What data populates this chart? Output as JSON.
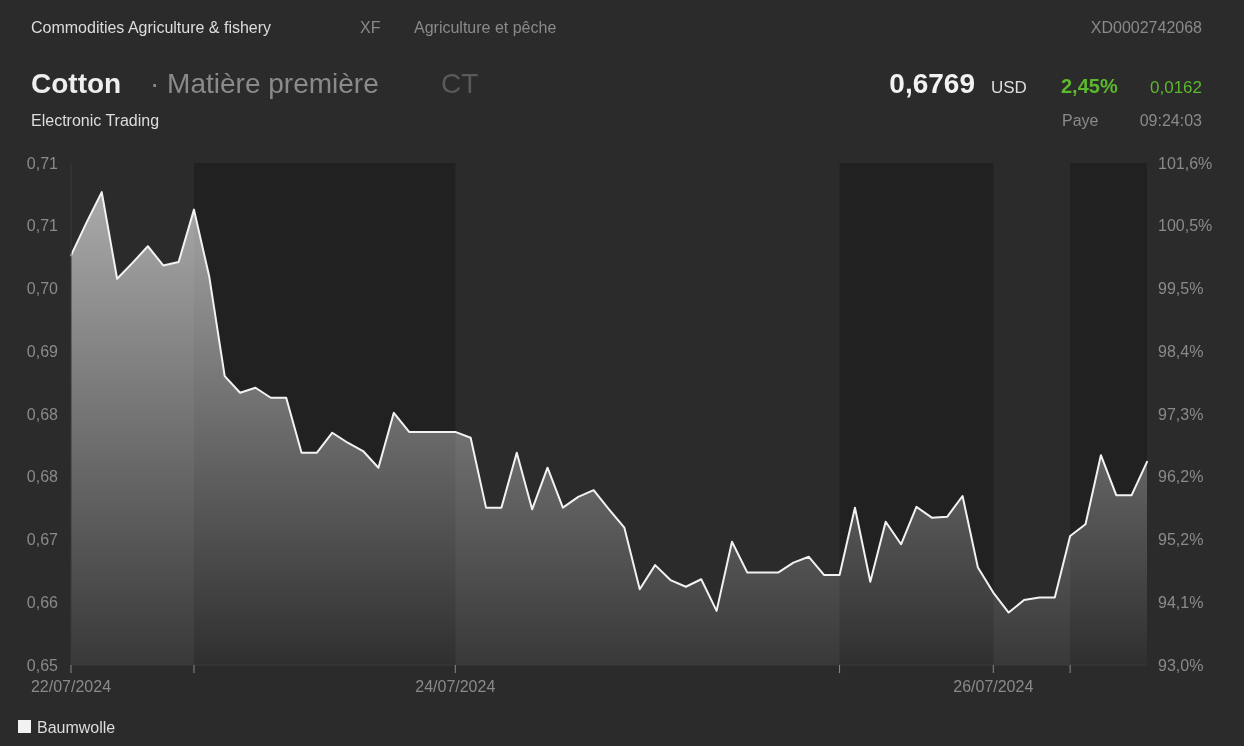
{
  "chart_data": {
    "type": "area",
    "title": "Cotton",
    "subtitle": "· Matière première",
    "annotations": [
      "Commodities Agriculture & fishery",
      "XF",
      "Agriculture et pêche",
      "XD0002742068",
      "CT",
      "0,6769",
      "USD",
      "2,45%",
      "0,0162",
      "Electronic Trading",
      "Paye",
      "09:24:03"
    ],
    "categories": [
      "22/07/2024",
      null,
      null,
      null,
      null,
      null,
      null,
      null,
      null,
      null,
      null,
      null,
      null,
      null,
      null,
      null,
      null,
      null,
      null,
      null,
      null,
      null,
      null,
      null,
      null,
      "24/07/2024",
      null,
      null,
      null,
      null,
      null,
      null,
      null,
      null,
      null,
      null,
      null,
      null,
      null,
      null,
      null,
      null,
      null,
      null,
      null,
      null,
      null,
      null,
      null,
      null,
      null,
      null,
      null,
      null,
      null,
      null,
      null,
      null,
      null,
      null,
      "26/07/2024",
      null,
      null,
      null,
      null,
      null,
      null,
      null,
      null,
      null,
      null
    ],
    "series": [
      {
        "name": "Baumwolle",
        "color": "#f2f2f2",
        "values": [
          0.7017,
          0.7056,
          0.7093,
          0.6989,
          0.7008,
          0.7028,
          0.7005,
          0.7009,
          0.7072,
          0.6991,
          0.6872,
          0.6852,
          0.6858,
          0.6846,
          0.6846,
          0.678,
          0.678,
          0.6804,
          0.6792,
          0.6782,
          0.6762,
          0.6828,
          0.6805,
          0.6805,
          0.6805,
          0.6805,
          0.6798,
          0.6714,
          0.6714,
          0.678,
          0.6712,
          0.6762,
          0.6714,
          0.6727,
          0.6735,
          0.6712,
          0.669,
          0.6616,
          0.6645,
          0.6627,
          0.6619,
          0.6628,
          0.659,
          0.6673,
          0.6636,
          0.6636,
          0.6636,
          0.6648,
          0.6655,
          0.6633,
          0.6633,
          0.6714,
          0.6625,
          0.6697,
          0.667,
          0.6715,
          0.6702,
          0.6703,
          0.6728,
          0.6642,
          0.6612,
          0.6588,
          0.6603,
          0.6606,
          0.6606,
          0.668,
          0.6694,
          0.6777,
          0.6729,
          0.6729,
          0.6769
        ]
      }
    ],
    "ylim": [
      0.6525,
      0.7128
    ],
    "yticks": [
      {
        "value": 0.6525,
        "label": "0,65"
      },
      {
        "value": 0.66,
        "label": "0,66"
      },
      {
        "value": 0.6676,
        "label": "0,67"
      },
      {
        "value": 0.6751,
        "label": "0,68"
      },
      {
        "value": 0.6826,
        "label": "0,68"
      },
      {
        "value": 0.6902,
        "label": "0,69"
      },
      {
        "value": 0.6977,
        "label": "0,70"
      },
      {
        "value": 0.7053,
        "label": "0,71"
      },
      {
        "value": 0.7128,
        "label": "0,71"
      }
    ],
    "y2lim": [
      93.0,
      101.6
    ],
    "y2ticks": [
      {
        "value": 93.0,
        "label": "93,0%"
      },
      {
        "value": 94.075,
        "label": "94,1%"
      },
      {
        "value": 95.15,
        "label": "95,2%"
      },
      {
        "value": 96.225,
        "label": "96,2%"
      },
      {
        "value": 97.3,
        "label": "97,3%"
      },
      {
        "value": 98.375,
        "label": "98,4%"
      },
      {
        "value": 99.45,
        "label": "99,5%"
      },
      {
        "value": 100.525,
        "label": "100,5%"
      },
      {
        "value": 101.6,
        "label": "101,6%"
      }
    ],
    "legend": "bottom left"
  }
}
